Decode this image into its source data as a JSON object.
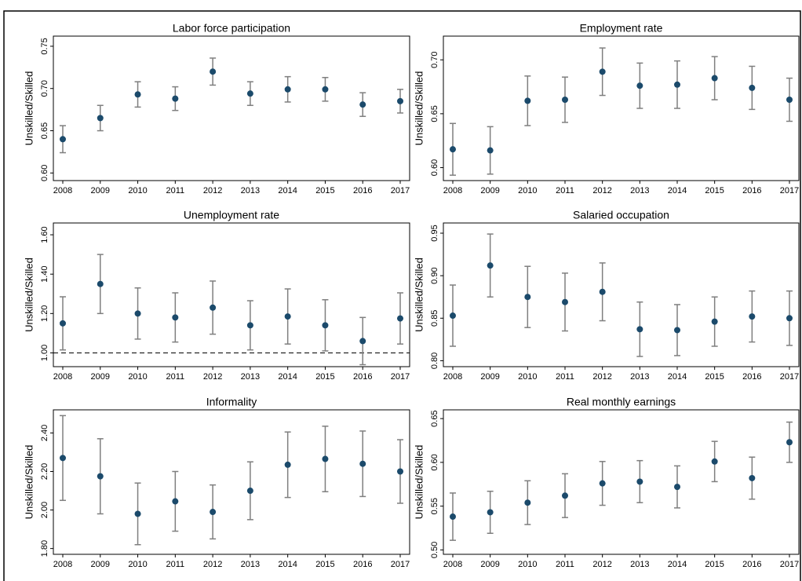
{
  "chart_data": [
    {
      "type": "errorbar",
      "title": "Labor force participation",
      "y_label": "Unskilled/Skilled",
      "color": "#1b4a6b",
      "error_color": "#7f7f7f",
      "categories": [
        "2008",
        "2009",
        "2010",
        "2011",
        "2012",
        "2013",
        "2014",
        "2015",
        "2016",
        "2017"
      ],
      "values": [
        0.64,
        0.665,
        0.693,
        0.688,
        0.72,
        0.694,
        0.699,
        0.699,
        0.681,
        0.685
      ],
      "errors": [
        0.016,
        0.015,
        0.015,
        0.014,
        0.016,
        0.014,
        0.015,
        0.014,
        0.014,
        0.014
      ],
      "ylim": [
        0.591,
        0.762
      ],
      "yticks": [
        {
          "value": 0.6,
          "label": "0.60"
        },
        {
          "value": 0.65,
          "label": "0.65"
        },
        {
          "value": 0.7,
          "label": "0.70"
        },
        {
          "value": 0.75,
          "label": "0.75"
        }
      ]
    },
    {
      "type": "errorbar",
      "title": "Employment rate",
      "y_label": "Unskilled/Skilled",
      "color": "#1b4a6b",
      "error_color": "#7f7f7f",
      "categories": [
        "2008",
        "2009",
        "2010",
        "2011",
        "2012",
        "2013",
        "2014",
        "2015",
        "2016",
        "2017"
      ],
      "values": [
        0.617,
        0.616,
        0.662,
        0.663,
        0.689,
        0.676,
        0.677,
        0.683,
        0.674,
        0.663
      ],
      "errors": [
        0.024,
        0.022,
        0.023,
        0.021,
        0.022,
        0.021,
        0.022,
        0.02,
        0.02,
        0.02
      ],
      "ylim": [
        0.588,
        0.722
      ],
      "yticks": [
        {
          "value": 0.6,
          "label": "0.60"
        },
        {
          "value": 0.65,
          "label": "0.65"
        },
        {
          "value": 0.7,
          "label": "0.70"
        }
      ]
    },
    {
      "type": "errorbar",
      "title": "Unemployment rate",
      "y_label": "Unskilled/Skilled",
      "color": "#1b4a6b",
      "error_color": "#7f7f7f",
      "categories": [
        "2008",
        "2009",
        "2010",
        "2011",
        "2012",
        "2013",
        "2014",
        "2015",
        "2016",
        "2017"
      ],
      "values": [
        1.15,
        1.35,
        1.2,
        1.18,
        1.23,
        1.14,
        1.185,
        1.14,
        1.06,
        1.175
      ],
      "errors": [
        0.135,
        0.15,
        0.13,
        0.125,
        0.135,
        0.125,
        0.14,
        0.13,
        0.12,
        0.13
      ],
      "ylim": [
        0.93,
        1.66
      ],
      "reference_line": 1,
      "yticks": [
        {
          "value": 1,
          "label": "1.00"
        },
        {
          "value": 1.2,
          "label": "1.20"
        },
        {
          "value": 1.4,
          "label": "1.40"
        },
        {
          "value": 1.6,
          "label": "1.60"
        }
      ]
    },
    {
      "type": "errorbar",
      "title": "Salaried occupation",
      "y_label": "Unskilled/Skilled",
      "color": "#1b4a6b",
      "error_color": "#7f7f7f",
      "categories": [
        "2008",
        "2009",
        "2010",
        "2011",
        "2012",
        "2013",
        "2014",
        "2015",
        "2016",
        "2017"
      ],
      "values": [
        0.853,
        0.912,
        0.875,
        0.869,
        0.881,
        0.837,
        0.836,
        0.846,
        0.852,
        0.85
      ],
      "errors": [
        0.036,
        0.037,
        0.036,
        0.034,
        0.034,
        0.032,
        0.03,
        0.029,
        0.03,
        0.032
      ],
      "ylim": [
        0.793,
        0.962
      ],
      "yticks": [
        {
          "value": 0.8,
          "label": "0.80"
        },
        {
          "value": 0.85,
          "label": "0.85"
        },
        {
          "value": 0.9,
          "label": "0.90"
        },
        {
          "value": 0.95,
          "label": "0.95"
        }
      ]
    },
    {
      "type": "errorbar",
      "title": "Informality",
      "y_label": "Unskilled/Skilled",
      "color": "#1b4a6b",
      "error_color": "#7f7f7f",
      "categories": [
        "2008",
        "2009",
        "2010",
        "2011",
        "2012",
        "2013",
        "2014",
        "2015",
        "2016",
        "2017"
      ],
      "values": [
        2.27,
        2.175,
        1.98,
        2.045,
        1.99,
        2.1,
        2.235,
        2.265,
        2.24,
        2.2
      ],
      "errors": [
        0.22,
        0.195,
        0.16,
        0.155,
        0.14,
        0.15,
        0.17,
        0.17,
        0.17,
        0.165
      ],
      "ylim": [
        1.77,
        2.52
      ],
      "yticks": [
        {
          "value": 1.8,
          "label": "1.80"
        },
        {
          "value": 2,
          "label": "2.00"
        },
        {
          "value": 2.2,
          "label": "2.20"
        },
        {
          "value": 2.4,
          "label": "2.40"
        }
      ]
    },
    {
      "type": "errorbar",
      "title": "Real monthly earnings",
      "y_label": "Unskilled/Skilled",
      "color": "#1b4a6b",
      "error_color": "#7f7f7f",
      "categories": [
        "2008",
        "2009",
        "2010",
        "2011",
        "2012",
        "2013",
        "2014",
        "2015",
        "2016",
        "2017"
      ],
      "values": [
        0.538,
        0.543,
        0.554,
        0.562,
        0.576,
        0.578,
        0.572,
        0.601,
        0.582,
        0.623
      ],
      "errors": [
        0.027,
        0.024,
        0.025,
        0.025,
        0.025,
        0.024,
        0.024,
        0.023,
        0.024,
        0.023
      ],
      "ylim": [
        0.495,
        0.66
      ],
      "yticks": [
        {
          "value": 0.5,
          "label": "0.50"
        },
        {
          "value": 0.55,
          "label": "0.55"
        },
        {
          "value": 0.6,
          "label": "0.60"
        },
        {
          "value": 0.65,
          "label": "0.65"
        }
      ]
    }
  ]
}
